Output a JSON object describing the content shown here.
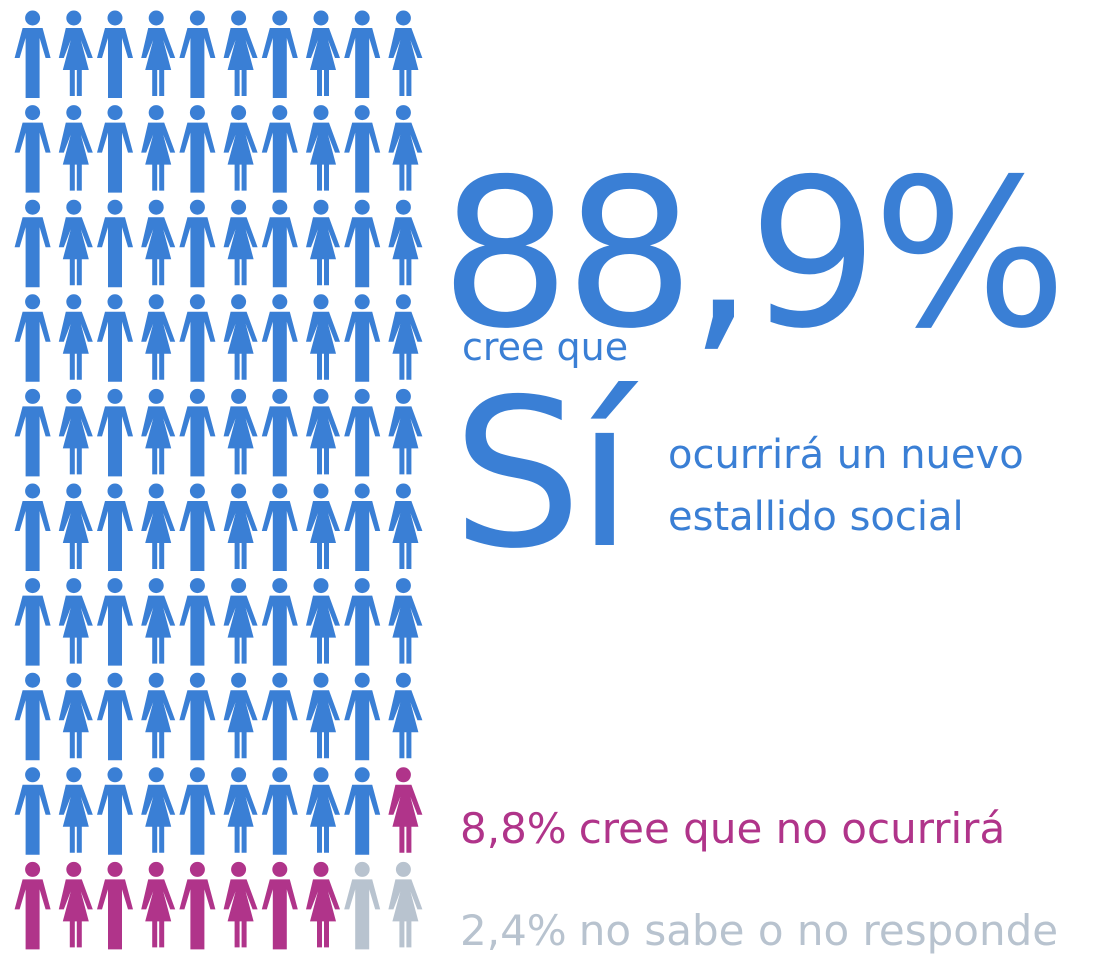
{
  "chart_data": {
    "type": "pictogram",
    "series": [
      {
        "name": "Sí",
        "values": [
          88.9
        ],
        "value_labels": [
          "88,9%"
        ],
        "color": "#3a7fd5",
        "lead": "cree que",
        "text": [
          "ocurrirá un nuevo",
          "estallido social"
        ]
      },
      {
        "values": [
          8.8
        ],
        "value_labels": [
          "8,8%"
        ],
        "color": "#b0348a",
        "text": [
          "cree que no ocurrirá"
        ]
      },
      {
        "values": [
          2.4
        ],
        "value_labels": [
          "2,4%"
        ],
        "color": "#b8c3cf",
        "text": [
          "no sabe o no responde"
        ]
      }
    ]
  }
}
